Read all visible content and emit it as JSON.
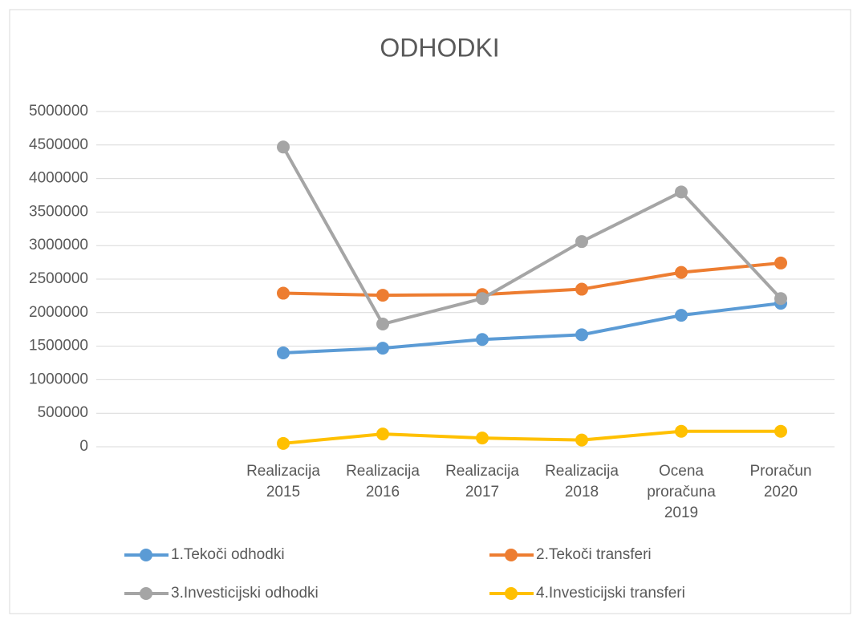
{
  "chart_data": {
    "type": "line",
    "title": "ODHODKI",
    "categories": [
      null,
      "Realizacija 2015",
      "Realizacija 2016",
      "Realizacija 2017",
      "Realizacija 2018",
      "Ocena proračuna 2019",
      "Proračun 2020"
    ],
    "series": [
      {
        "name": "1.Tekoči odhodki",
        "color": "#5b9bd5",
        "values": [
          null,
          1400000,
          1470000,
          1600000,
          1670000,
          1960000,
          2140000
        ]
      },
      {
        "name": "2.Tekoči transferi",
        "color": "#ed7d31",
        "values": [
          null,
          2290000,
          2260000,
          2270000,
          2350000,
          2600000,
          2740000
        ]
      },
      {
        "name": "3.Investicijski odhodki",
        "color": "#a5a5a5",
        "values": [
          null,
          4470000,
          1830000,
          2210000,
          3060000,
          3800000,
          2210000
        ]
      },
      {
        "name": "4.Investicijski transferi",
        "color": "#ffc000",
        "values": [
          null,
          50000,
          190000,
          130000,
          100000,
          230000,
          230000
        ]
      }
    ],
    "ylim": [
      0,
      5000000
    ],
    "yticks": [
      0,
      500000,
      1000000,
      1500000,
      2000000,
      2500000,
      3000000,
      3500000,
      4000000,
      4500000,
      5000000
    ],
    "grid": true,
    "legend": "bottom"
  }
}
